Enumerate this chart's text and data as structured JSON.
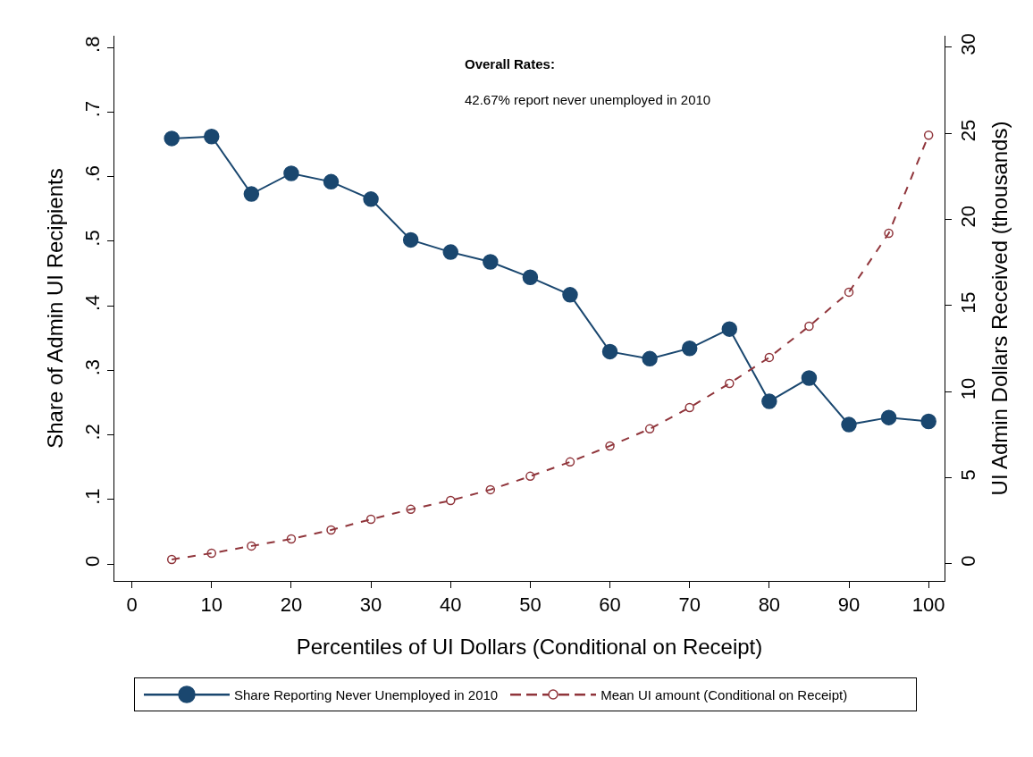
{
  "chart_data": {
    "type": "line",
    "xlabel": "Percentiles of UI Dollars (Conditional on Receipt)",
    "ylabel": "Share of Admin UI Recipients",
    "y2label": "UI Admin Dollars Received (thousands)",
    "annotations": [
      "Overall Rates:",
      "42.67% report never unemployed in 2010"
    ],
    "x": [
      5,
      10,
      15,
      20,
      25,
      30,
      35,
      40,
      45,
      50,
      55,
      60,
      65,
      70,
      75,
      80,
      85,
      90,
      95,
      100
    ],
    "series": [
      {
        "name": "Share Reporting Never Unemployed in 2010",
        "color": "#1a476f",
        "marker": "circle",
        "line_style": "solid",
        "values": [
          0.659,
          0.662,
          0.573,
          0.605,
          0.592,
          0.565,
          0.502,
          0.483,
          0.468,
          0.444,
          0.417,
          0.329,
          0.318,
          0.334,
          0.364,
          0.252,
          0.288,
          0.216,
          0.227,
          0.221
        ]
      },
      {
        "name": "Mean UI amount (Conditional on Receipt)",
        "color": "#90353b",
        "marker": "circle",
        "line_style": "dashed",
        "axis": "y2",
        "values": [
          0.26,
          0.62,
          1.04,
          1.45,
          1.97,
          2.59,
          3.17,
          3.68,
          4.31,
          5.09,
          5.92,
          6.85,
          7.84,
          9.08,
          10.48,
          11.99,
          13.8,
          15.78,
          19.2,
          24.9
        ]
      }
    ],
    "xlim": [
      -2.2,
      102
    ],
    "xticks": [
      0,
      10,
      20,
      30,
      40,
      50,
      60,
      70,
      80,
      90,
      100
    ],
    "ylim": [
      -0.026,
      0.818
    ],
    "yticks": [
      {
        "value": 0,
        "label": "0"
      },
      {
        "value": 0.1,
        "label": ".1"
      },
      {
        "value": 0.2,
        "label": ".2"
      },
      {
        "value": 0.3,
        "label": ".3"
      },
      {
        "value": 0.4,
        "label": ".4"
      },
      {
        "value": 0.5,
        "label": ".5"
      },
      {
        "value": 0.6,
        "label": ".6"
      },
      {
        "value": 0.7,
        "label": ".7"
      },
      {
        "value": 0.8,
        "label": ".8"
      }
    ],
    "y2lim": [
      -0.99,
      30.67
    ],
    "y2ticks": [
      0,
      5,
      10,
      15,
      20,
      25,
      30
    ],
    "grid": false,
    "legend": "bottom"
  }
}
